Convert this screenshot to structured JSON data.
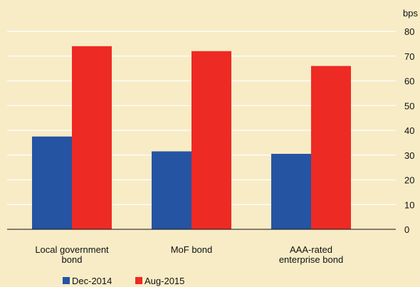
{
  "chart_data": {
    "type": "bar",
    "unit": "bps",
    "categories": [
      [
        "Local government",
        "bond"
      ],
      [
        "MoF bond"
      ],
      [
        "AAA-rated",
        "enterprise bond"
      ]
    ],
    "series": [
      {
        "name": "Dec-2014",
        "color": "#2554a3",
        "values": [
          37.5,
          31.5,
          30.5
        ]
      },
      {
        "name": "Aug-2015",
        "color": "#ee2a24",
        "values": [
          74,
          72,
          66
        ]
      }
    ],
    "y_ticks": [
      0,
      10,
      20,
      30,
      40,
      50,
      60,
      70,
      80
    ],
    "ylim": [
      0,
      80
    ],
    "y_axis_side": "right",
    "grid": true,
    "legend_position": "bottom-left"
  }
}
